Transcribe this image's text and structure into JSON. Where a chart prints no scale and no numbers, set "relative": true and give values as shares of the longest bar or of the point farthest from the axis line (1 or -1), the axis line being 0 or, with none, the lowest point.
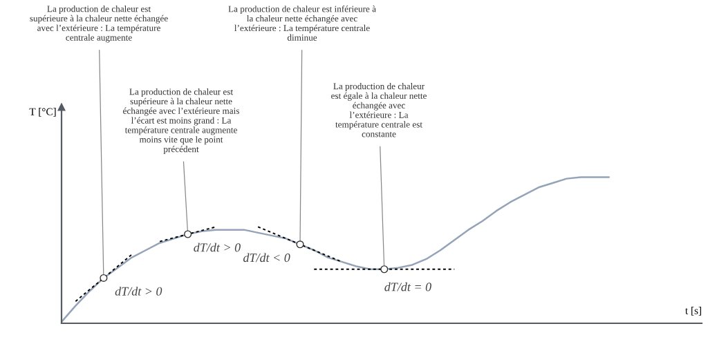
{
  "chart_data": {
    "type": "line",
    "relative": true,
    "categories": [
      null,
      null,
      null,
      null,
      null,
      null,
      null,
      null,
      null,
      null,
      null,
      null,
      null,
      null,
      null,
      null,
      null,
      null,
      null,
      null,
      null,
      null,
      null,
      null,
      null,
      null,
      null,
      null,
      null,
      null,
      null,
      null,
      null,
      null,
      null,
      null,
      null,
      null,
      null,
      null
    ],
    "series": [
      {
        "color": "#94a3b8",
        "values": [
          0.01,
          0.12,
          0.22,
          0.31,
          0.38,
          0.45,
          0.5,
          0.55,
          0.58,
          0.61,
          0.63,
          0.64,
          0.64,
          0.64,
          0.62,
          0.6,
          0.58,
          0.54,
          0.5,
          0.45,
          0.42,
          0.39,
          0.37,
          0.37,
          0.38,
          0.4,
          0.44,
          0.5,
          0.57,
          0.64,
          0.7,
          0.77,
          0.83,
          0.88,
          0.93,
          0.96,
          0.99,
          1.0,
          1.0,
          1.0
        ]
      }
    ],
    "annotations": [
      "La production de chaleur est\nsupérieure à la chaleur nette échangée\navec l’extérieure : La température\ncentrale augmente",
      "La production de chaleur est\nsupérieure à la chaleur nette\néchangée avec l’extérieure mais\nl’écart est moins grand : La\ntempérature centrale augmente\nmoins vite que le point\nprécédent",
      "La production de chaleur est inférieure à\nla chaleur nette échangée avec\nl’extérieure : La température centrale\ndiminue",
      "La production de chaleur\nest égale à la chaleur nette\néchangée avec\nl’extérieure : La\ntempérature centrale est\nconstante",
      "dT/dt > 0",
      "dT/dt > 0",
      "dT/dt < 0",
      "dT/dt = 0",
      "T [°C]",
      "t [s]"
    ]
  }
}
